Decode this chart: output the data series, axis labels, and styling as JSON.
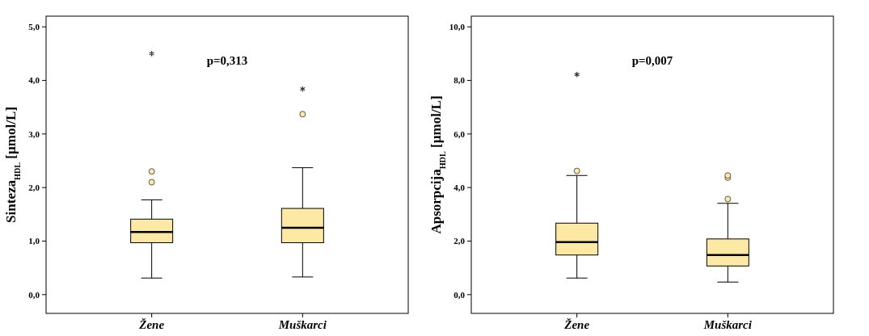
{
  "chart_data": [
    {
      "type": "box",
      "ylabel": "Sinteza$_{HDL}$ [µmol/L]",
      "categories": [
        "Žene",
        "Muškarci"
      ],
      "ylim": [
        -0.35,
        5.2
      ],
      "yticks": [
        {
          "value": 0,
          "label": "0,0"
        },
        {
          "value": 1,
          "label": "1,0"
        },
        {
          "value": 2,
          "label": "2,0"
        },
        {
          "value": 3,
          "label": "3,0"
        },
        {
          "value": 4,
          "label": "4,0"
        },
        {
          "value": 5,
          "label": "5,0"
        }
      ],
      "grid": false,
      "annotations": [
        "p=0,313"
      ],
      "series": [
        {
          "color": "#fde9a4",
          "boxes": [
            {
              "low": 0.31,
              "q1": 0.97,
              "median": 1.17,
              "q3": 1.41,
              "high": 1.77,
              "outliers": [
                2.1,
                2.3
              ]
            },
            {
              "low": 0.33,
              "q1": 0.97,
              "median": 1.25,
              "q3": 1.61,
              "high": 2.37,
              "outliers": [
                3.37
              ]
            }
          ]
        },
        {
          "type": "scatter",
          "marker": "cross",
          "color": "#333333",
          "x": [
            "Žene",
            "Muškarci"
          ],
          "values": [
            4.5,
            3.84
          ]
        }
      ]
    },
    {
      "type": "box",
      "ylabel": "Apsorpcija$_{HDL}$ [µmol/L]",
      "categories": [
        "Žene",
        "Muškarci"
      ],
      "ylim": [
        -0.7,
        10.4
      ],
      "yticks": [
        {
          "value": 0,
          "label": "0,0"
        },
        {
          "value": 2,
          "label": "2,0"
        },
        {
          "value": 4,
          "label": "4,0"
        },
        {
          "value": 6,
          "label": "6,0"
        },
        {
          "value": 8,
          "label": "8,0"
        },
        {
          "value": 10,
          "label": "10,0"
        }
      ],
      "grid": false,
      "annotations": [
        "p=0,007"
      ],
      "series": [
        {
          "color": "#fde9a4",
          "boxes": [
            {
              "low": 0.62,
              "q1": 1.48,
              "median": 1.96,
              "q3": 2.67,
              "high": 4.45,
              "outliers": [
                4.62
              ]
            },
            {
              "low": 0.47,
              "q1": 1.07,
              "median": 1.48,
              "q3": 2.08,
              "high": 3.41,
              "outliers": [
                3.57,
                4.37,
                4.45
              ]
            }
          ]
        },
        {
          "type": "scatter",
          "marker": "cross",
          "color": "#333333",
          "x": [
            "Žene"
          ],
          "values": [
            8.22
          ]
        }
      ]
    }
  ]
}
